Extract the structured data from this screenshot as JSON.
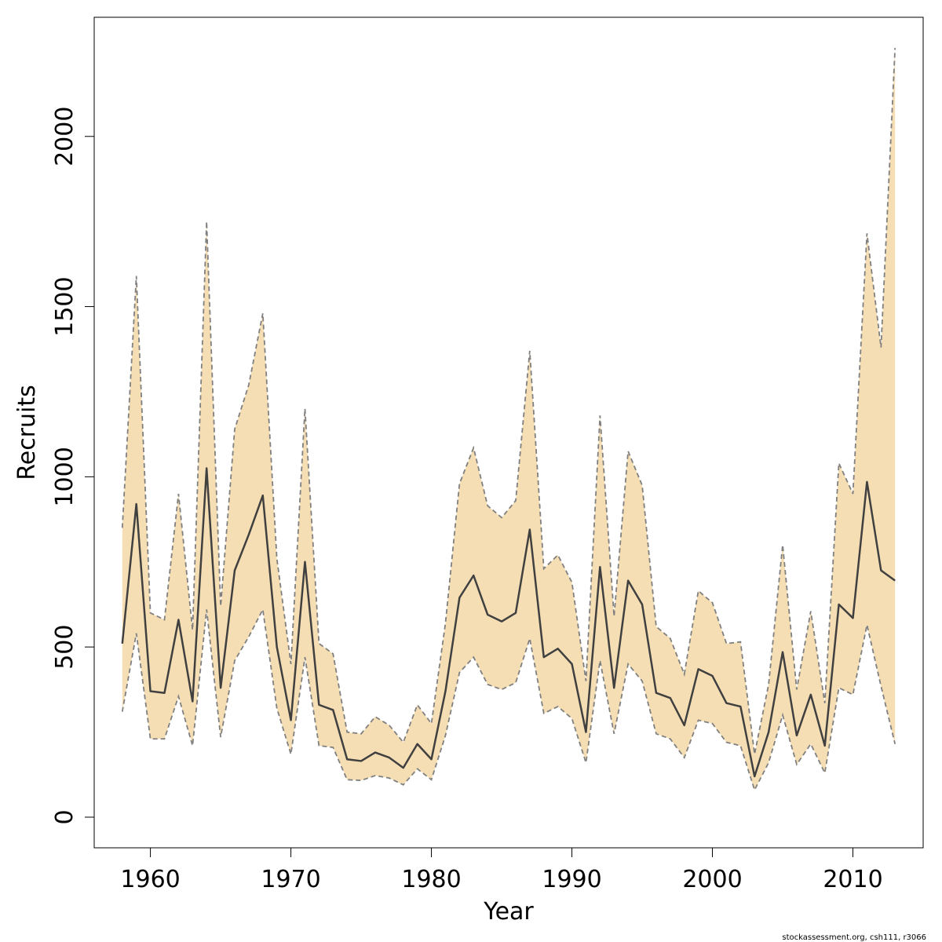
{
  "chart_data": {
    "type": "line",
    "xlabel": "Year",
    "ylabel": "Recruits",
    "xlim": [
      1956,
      2015
    ],
    "ylim": [
      -90,
      2350
    ],
    "xticks": [
      1960,
      1970,
      1980,
      1990,
      2000,
      2010
    ],
    "yticks": [
      0,
      500,
      1000,
      1500,
      2000
    ],
    "credit": "stockassessment.org, csh111, r3066",
    "colors": {
      "band": "#f5deb3",
      "line": "#404040",
      "bound": "#808080"
    },
    "x": [
      1958,
      1959,
      1960,
      1961,
      1962,
      1963,
      1964,
      1965,
      1966,
      1967,
      1968,
      1969,
      1970,
      1971,
      1972,
      1973,
      1974,
      1975,
      1976,
      1977,
      1978,
      1979,
      1980,
      1981,
      1982,
      1983,
      1984,
      1985,
      1986,
      1987,
      1988,
      1989,
      1990,
      1991,
      1992,
      1993,
      1994,
      1995,
      1996,
      1997,
      1998,
      1999,
      2000,
      2001,
      2002,
      2003,
      2004,
      2005,
      2006,
      2007,
      2008,
      2009,
      2010,
      2011,
      2012,
      2013
    ],
    "series": [
      {
        "role": "estimate",
        "values": [
          510,
          920,
          370,
          365,
          580,
          340,
          1025,
          380,
          725,
          830,
          945,
          500,
          285,
          750,
          330,
          315,
          170,
          165,
          190,
          175,
          145,
          215,
          170,
          370,
          645,
          710,
          595,
          575,
          600,
          845,
          470,
          495,
          450,
          250,
          735,
          380,
          695,
          625,
          365,
          350,
          270,
          435,
          415,
          335,
          325,
          120,
          250,
          485,
          240,
          360,
          210,
          625,
          585,
          985,
          725,
          695
        ]
      },
      {
        "role": "upper",
        "values": [
          850,
          1590,
          600,
          580,
          950,
          550,
          1750,
          620,
          1140,
          1270,
          1480,
          760,
          450,
          1200,
          510,
          480,
          250,
          245,
          295,
          270,
          220,
          330,
          275,
          570,
          980,
          1085,
          915,
          880,
          930,
          1370,
          730,
          770,
          690,
          400,
          1180,
          590,
          1075,
          975,
          560,
          525,
          420,
          665,
          630,
          510,
          515,
          185,
          390,
          800,
          375,
          605,
          335,
          1040,
          950,
          1715,
          1380,
          2260
        ]
      },
      {
        "role": "lower",
        "values": [
          310,
          540,
          230,
          230,
          355,
          210,
          610,
          235,
          460,
          530,
          610,
          320,
          185,
          470,
          210,
          205,
          110,
          108,
          122,
          115,
          95,
          142,
          110,
          240,
          425,
          470,
          390,
          375,
          395,
          525,
          305,
          325,
          290,
          160,
          460,
          245,
          450,
          400,
          245,
          230,
          175,
          285,
          275,
          220,
          210,
          80,
          160,
          300,
          155,
          215,
          130,
          380,
          360,
          565,
          385,
          215
        ]
      }
    ]
  }
}
